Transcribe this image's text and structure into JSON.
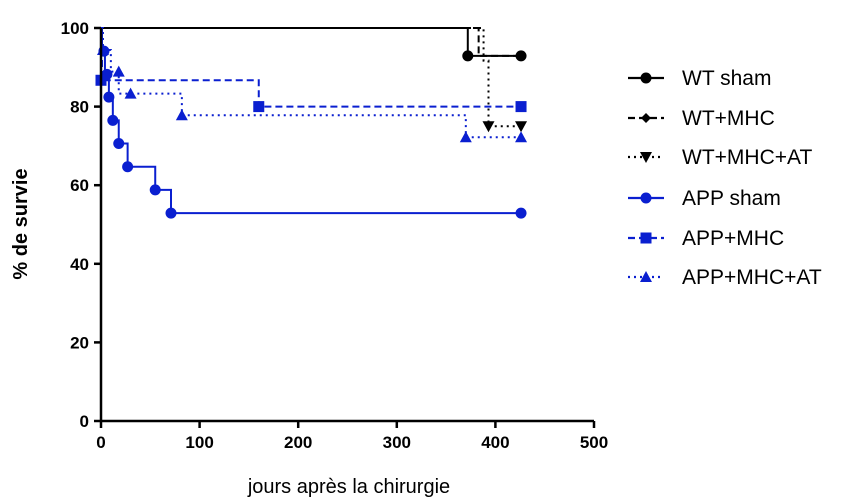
{
  "chart_data": {
    "type": "line",
    "subtype": "kaplan-meier survival (step)",
    "title": "",
    "xlabel": "jours après la chirurgie",
    "ylabel": "% de survie",
    "xlim": [
      0,
      500
    ],
    "ylim": [
      0,
      100
    ],
    "xticks": [
      0,
      100,
      200,
      300,
      400,
      500
    ],
    "yticks": [
      0,
      20,
      40,
      60,
      80,
      100
    ],
    "grid": false,
    "legend_position": "right",
    "series": [
      {
        "name": "WT sham",
        "color": "#000000",
        "dash": "solid",
        "marker": "circle",
        "steps": [
          [
            0,
            100
          ],
          [
            372,
            100
          ],
          [
            372,
            92.9
          ],
          [
            426,
            92.9
          ]
        ],
        "markers": [
          [
            372,
            92.9
          ],
          [
            426,
            92.9
          ]
        ]
      },
      {
        "name": "WT+MHC",
        "color": "#000000",
        "dash": "dashed",
        "marker": "diamond",
        "steps": [
          [
            0,
            100
          ],
          [
            383,
            100
          ],
          [
            383,
            92.9
          ],
          [
            426,
            92.9
          ]
        ],
        "markers": [
          [
            426,
            92.9
          ]
        ]
      },
      {
        "name": "WT+MHC+AT",
        "color": "#000000",
        "dash": "dotted",
        "marker": "triangle-down",
        "steps": [
          [
            0,
            100
          ],
          [
            388,
            100
          ],
          [
            388,
            91.7
          ],
          [
            393,
            91.7
          ],
          [
            393,
            75
          ],
          [
            426,
            75
          ]
        ],
        "markers": [
          [
            393,
            75
          ],
          [
            426,
            75
          ]
        ]
      },
      {
        "name": "APP sham",
        "color": "#0a1fd0",
        "dash": "solid",
        "marker": "circle",
        "steps": [
          [
            0,
            100
          ],
          [
            1,
            100
          ],
          [
            1,
            94.1
          ],
          [
            4,
            94.1
          ],
          [
            4,
            88.2
          ],
          [
            8,
            88.2
          ],
          [
            8,
            82.4
          ],
          [
            12,
            82.4
          ],
          [
            12,
            76.5
          ],
          [
            18,
            76.5
          ],
          [
            18,
            70.6
          ],
          [
            27,
            70.6
          ],
          [
            27,
            64.7
          ],
          [
            55,
            64.7
          ],
          [
            55,
            58.8
          ],
          [
            71,
            58.8
          ],
          [
            71,
            52.9
          ],
          [
            426,
            52.9
          ]
        ],
        "markers": [
          [
            3,
            94.1
          ],
          [
            6,
            88.2
          ],
          [
            8,
            82.4
          ],
          [
            12,
            76.5
          ],
          [
            18,
            70.6
          ],
          [
            27,
            64.7
          ],
          [
            55,
            58.8
          ],
          [
            71,
            52.9
          ],
          [
            426,
            52.9
          ]
        ]
      },
      {
        "name": "APP+MHC",
        "color": "#0a1fd0",
        "dash": "dashed",
        "marker": "square",
        "steps": [
          [
            0,
            100
          ],
          [
            1,
            100
          ],
          [
            1,
            86.7
          ],
          [
            160,
            86.7
          ],
          [
            160,
            80
          ],
          [
            426,
            80
          ]
        ],
        "markers": [
          [
            0,
            86.7
          ],
          [
            160,
            80
          ],
          [
            426,
            80
          ]
        ]
      },
      {
        "name": "APP+MHC+AT",
        "color": "#0a1fd0",
        "dash": "dotted",
        "marker": "triangle-up",
        "steps": [
          [
            0,
            100
          ],
          [
            2,
            100
          ],
          [
            2,
            94.4
          ],
          [
            10,
            94.4
          ],
          [
            10,
            88.9
          ],
          [
            18,
            88.9
          ],
          [
            18,
            83.3
          ],
          [
            82,
            83.3
          ],
          [
            82,
            77.8
          ],
          [
            370,
            77.8
          ],
          [
            370,
            72.2
          ],
          [
            426,
            72.2
          ]
        ],
        "markers": [
          [
            2,
            94.4
          ],
          [
            18,
            88.9
          ],
          [
            30,
            83.3
          ],
          [
            82,
            77.8
          ],
          [
            370,
            72.2
          ],
          [
            426,
            72.2
          ]
        ]
      }
    ]
  }
}
